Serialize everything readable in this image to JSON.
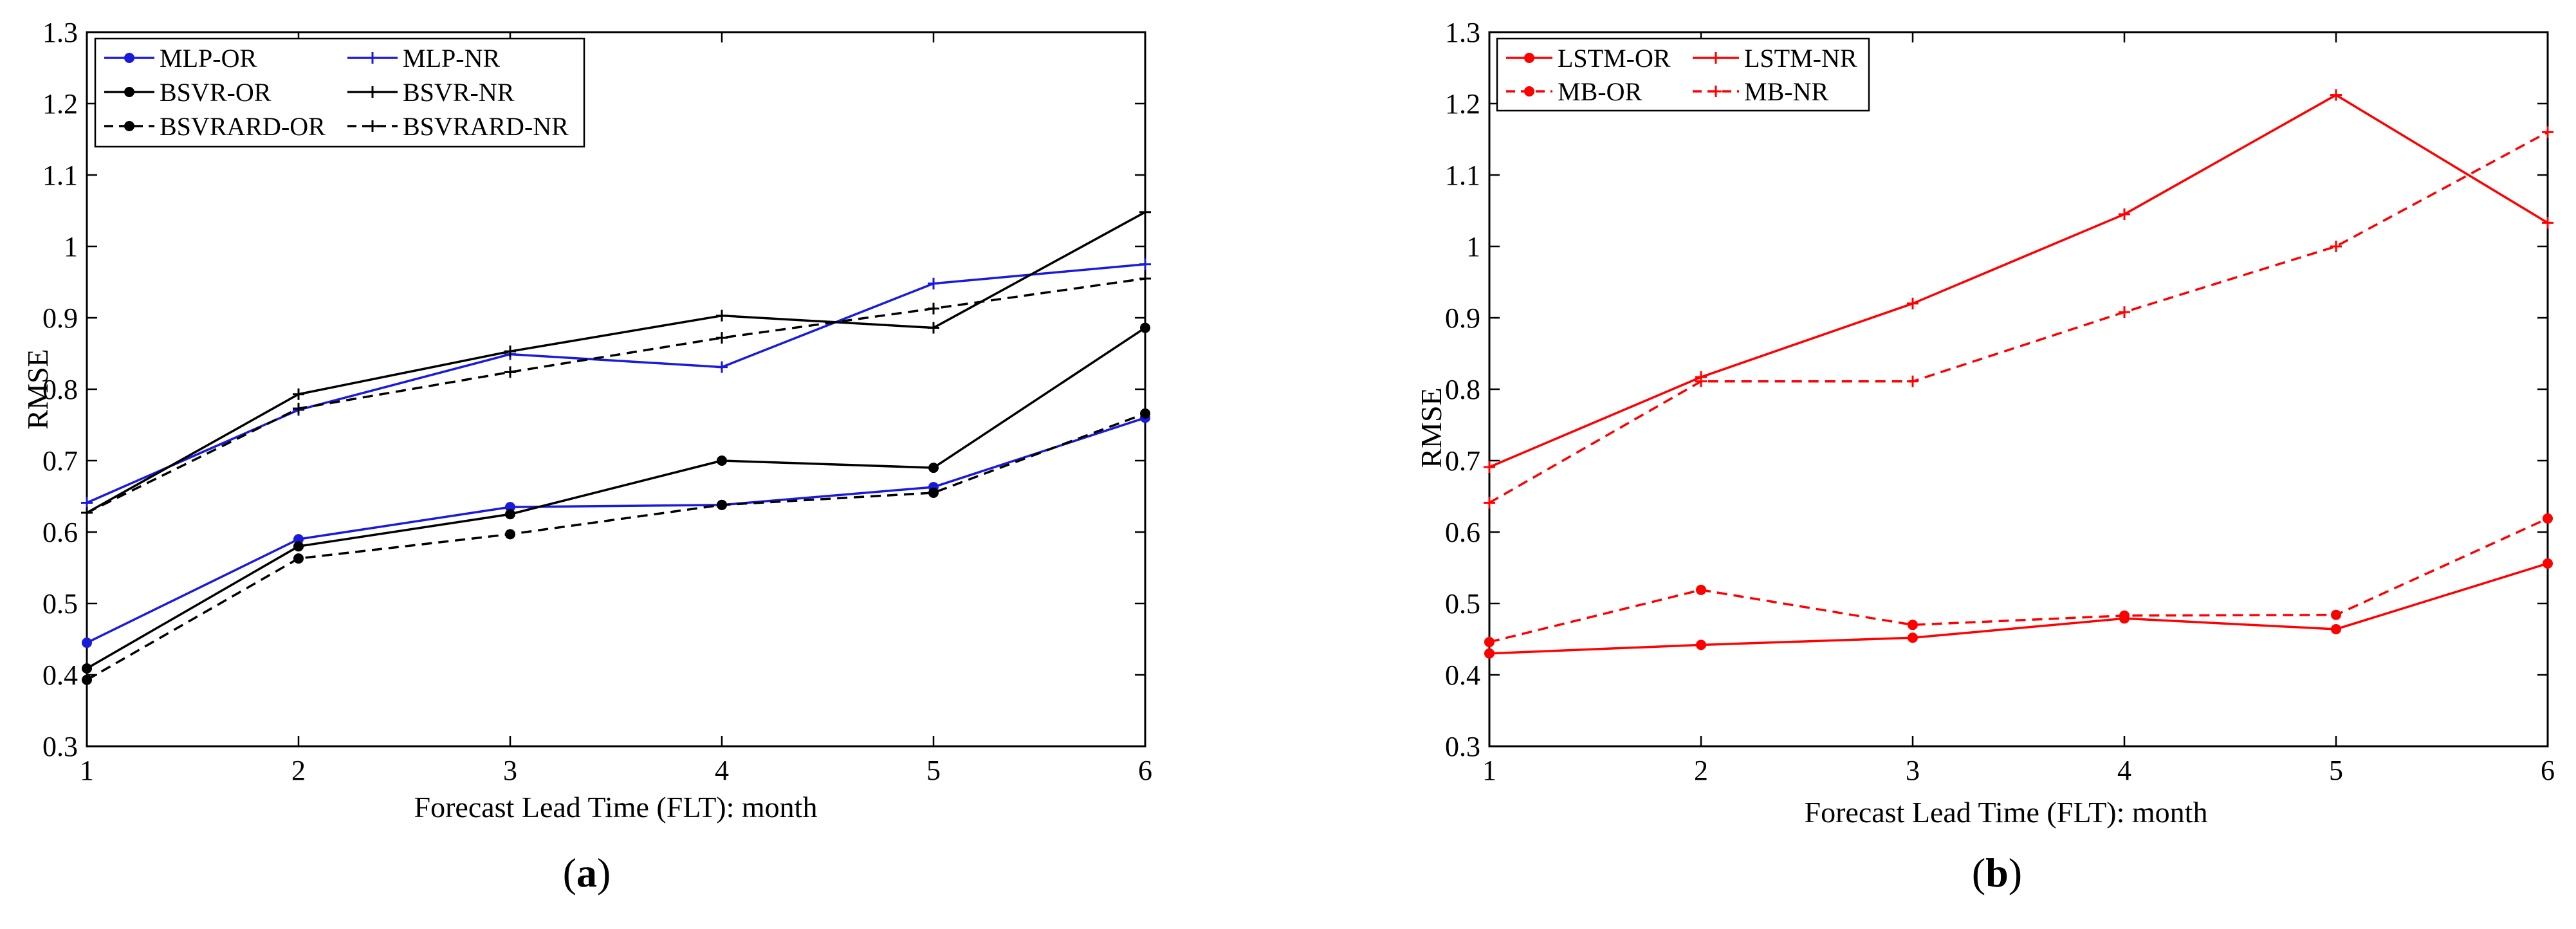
{
  "chart_data": [
    {
      "type": "line",
      "panel_label": {
        "open": "(",
        "letter": "a",
        "close": ")"
      },
      "xlabel": "Forecast Lead Time (FLT): month",
      "ylabel": "RMSE",
      "x": [
        1,
        2,
        3,
        4,
        5,
        6
      ],
      "xlim": [
        1,
        6
      ],
      "ylim": [
        0.3,
        1.3
      ],
      "yticks": [
        "0.3",
        "0.4",
        "0.5",
        "0.6",
        "0.7",
        "0.8",
        "0.9",
        "1",
        "1.1",
        "1.2",
        "1.3"
      ],
      "xticks": [
        "1",
        "2",
        "3",
        "4",
        "5",
        "6"
      ],
      "legend_position": "top-left",
      "series": [
        {
          "name": "MLP-OR",
          "color": "#1a1adb",
          "dash": "solid",
          "marker": "dot",
          "values": [
            0.445,
            0.59,
            0.635,
            0.638,
            0.663,
            0.76
          ]
        },
        {
          "name": "MLP-NR",
          "color": "#1a1adb",
          "dash": "solid",
          "marker": "plus",
          "values": [
            0.641,
            0.771,
            0.849,
            0.831,
            0.948,
            0.975
          ]
        },
        {
          "name": "BSVR-OR",
          "color": "#000000",
          "dash": "solid",
          "marker": "dot",
          "values": [
            0.409,
            0.58,
            0.625,
            0.7,
            0.69,
            0.886
          ]
        },
        {
          "name": "BSVR-NR",
          "color": "#000000",
          "dash": "solid",
          "marker": "plus",
          "values": [
            0.627,
            0.793,
            0.853,
            0.903,
            0.886,
            1.048
          ]
        },
        {
          "name": "BSVRARD-OR",
          "color": "#000000",
          "dash": "dashed",
          "marker": "dot",
          "values": [
            0.393,
            0.563,
            0.597,
            0.638,
            0.655,
            0.766
          ]
        },
        {
          "name": "BSVRARD-NR",
          "color": "#000000",
          "dash": "dashed",
          "marker": "plus",
          "values": [
            0.627,
            0.773,
            0.824,
            0.872,
            0.913,
            0.955
          ]
        }
      ]
    },
    {
      "type": "line",
      "panel_label": {
        "open": "(",
        "letter": "b",
        "close": ")"
      },
      "xlabel": "Forecast Lead Time (FLT): month",
      "ylabel": "RMSE",
      "x": [
        1,
        2,
        3,
        4,
        5,
        6
      ],
      "xlim": [
        1,
        6
      ],
      "ylim": [
        0.3,
        1.3
      ],
      "yticks": [
        "0.3",
        "0.4",
        "0.5",
        "0.6",
        "0.7",
        "0.8",
        "0.9",
        "1",
        "1.1",
        "1.2",
        "1.3"
      ],
      "xticks": [
        "1",
        "2",
        "3",
        "4",
        "5",
        "6"
      ],
      "legend_position": "top-left",
      "series": [
        {
          "name": "LSTM-OR",
          "color": "#ff0000",
          "dash": "solid",
          "marker": "dot",
          "values": [
            0.43,
            0.442,
            0.452,
            0.479,
            0.464,
            0.556
          ]
        },
        {
          "name": "LSTM-NR",
          "color": "#ff0000",
          "dash": "solid",
          "marker": "plus",
          "values": [
            0.691,
            0.817,
            0.92,
            1.045,
            1.212,
            1.033
          ]
        },
        {
          "name": "MB-OR",
          "color": "#ff0000",
          "dash": "dashed",
          "marker": "dot",
          "values": [
            0.446,
            0.519,
            0.47,
            0.483,
            0.484,
            0.619
          ]
        },
        {
          "name": "MB-NR",
          "color": "#ff0000",
          "dash": "dashed",
          "marker": "plus",
          "values": [
            0.641,
            0.811,
            0.811,
            0.908,
            1.0,
            1.16
          ]
        }
      ]
    }
  ]
}
